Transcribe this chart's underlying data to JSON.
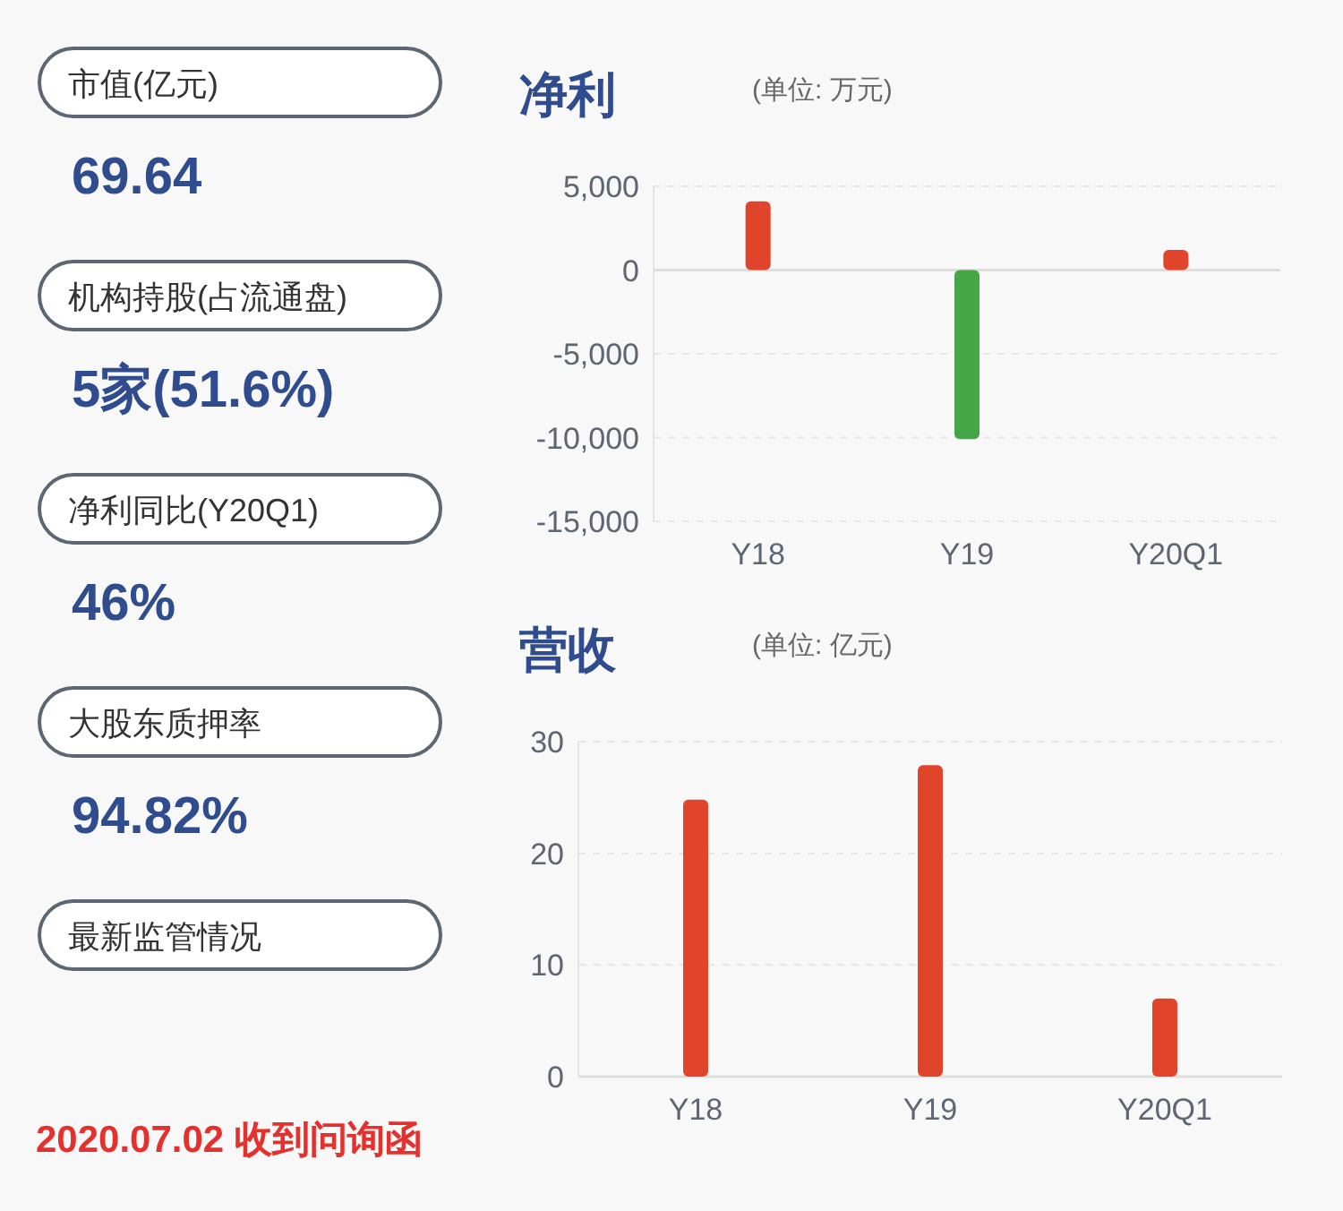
{
  "chart_data": [
    {
      "type": "other",
      "annotations": [
        "市值(亿元)",
        "69.64",
        "机构持股(占流通盘)",
        "5家(51.6%)",
        "净利同比(Y20Q1)",
        "46%",
        "大股东质押率",
        "94.82%",
        "最新监管情况",
        "2020.07.02 收到问询函"
      ]
    },
    {
      "type": "bar",
      "title": "净利",
      "subtitle": "(单位: 万元)",
      "categories": [
        "Y18",
        "Y19",
        "Y20Q1"
      ],
      "values": [
        4100,
        -10100,
        1200
      ],
      "colors": [
        "#e0452b",
        "#45a647",
        "#e0452b"
      ],
      "ylim": [
        -15000,
        5000
      ],
      "yticks": [
        {
          "value": -15000,
          "label": "-15,000"
        },
        {
          "value": -10000,
          "label": "-10,000"
        },
        {
          "value": -5000,
          "label": "-5,000"
        },
        0,
        {
          "value": 5000,
          "label": "5,000"
        }
      ],
      "grid": "y"
    },
    {
      "type": "bar",
      "title": "营收",
      "subtitle": "(单位: 亿元)",
      "categories": [
        "Y18",
        "Y19",
        "Y20Q1"
      ],
      "values": [
        24.8,
        27.9,
        7.0
      ],
      "colors": [
        "#e0452b",
        "#e0452b",
        "#e0452b"
      ],
      "ylim": [
        0,
        30
      ],
      "yticks": [
        0,
        10,
        20,
        30
      ],
      "grid": "y"
    }
  ]
}
